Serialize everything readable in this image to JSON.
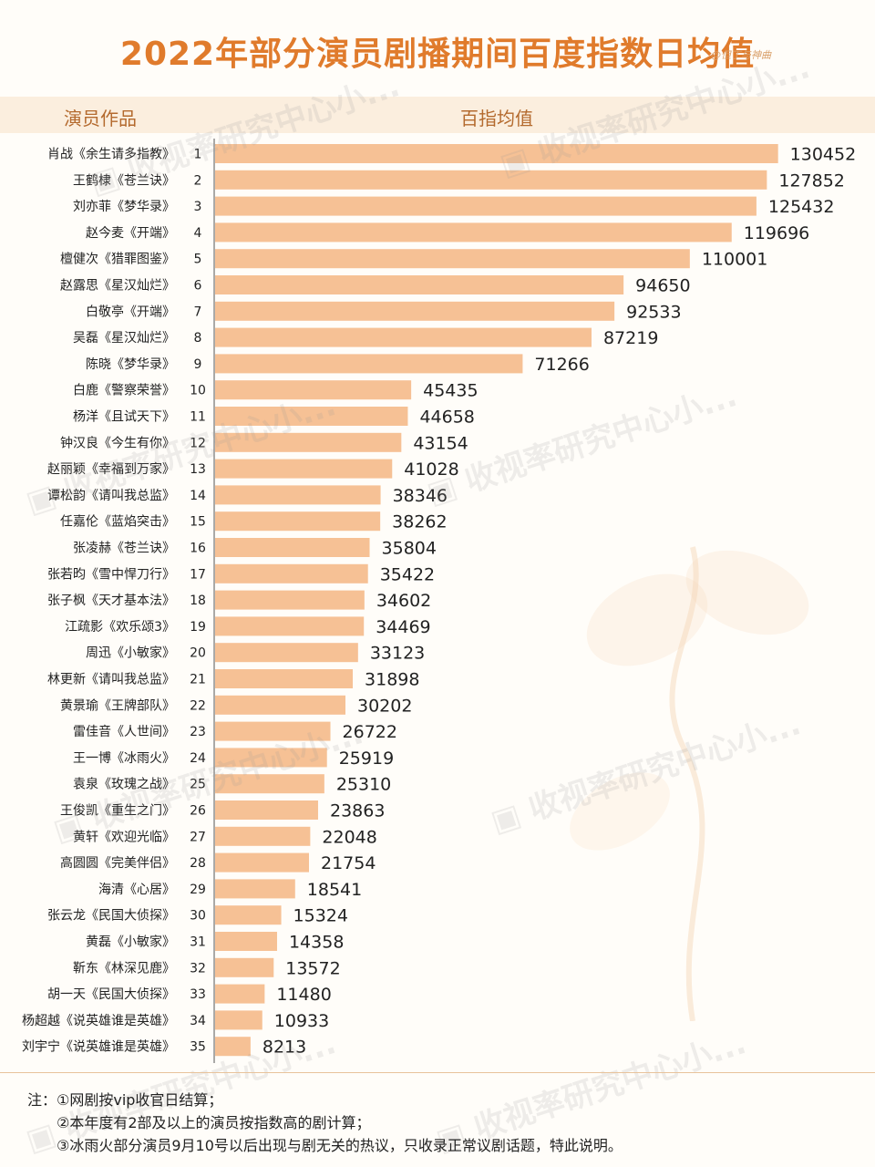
{
  "header": {
    "title": "2022年部分演员剧播期间百度指数日均值",
    "signature": "@但丁与神曲",
    "col_left": "演员作品",
    "col_right": "百指均值"
  },
  "watermark_text": "收视率研究中心小...",
  "colors": {
    "title": "#e07b2c",
    "bar": "#f6c195",
    "header_band": "#fbeede",
    "header_text": "#b46a2e"
  },
  "chart_data": {
    "type": "bar",
    "orientation": "horizontal",
    "title": "2022年部分演员剧播期间百度指数日均值",
    "xlabel": "百指均值",
    "ylabel": "演员作品",
    "xlim": [
      0,
      132000
    ],
    "grid": false,
    "legend": "none",
    "data_labels": true,
    "ranks": [
      "1",
      "2",
      "3",
      "4",
      "5",
      "6",
      "7",
      "8",
      "9",
      "10",
      "11",
      "12",
      "13",
      "14",
      "15",
      "16",
      "17",
      "18",
      "19",
      "20",
      "21",
      "22",
      "23",
      "24",
      "25",
      "26",
      "27",
      "28",
      "29",
      "30",
      "31",
      "32",
      "33",
      "34",
      "35"
    ],
    "categories": [
      "肖战《余生请多指教》",
      "王鹤棣《苍兰诀》",
      "刘亦菲《梦华录》",
      "赵今麦《开端》",
      "檀健次《猎罪图鉴》",
      "赵露思《星汉灿烂》",
      "白敬亭《开端》",
      "吴磊《星汉灿烂》",
      "陈晓《梦华录》",
      "白鹿《警察荣誉》",
      "杨洋《且试天下》",
      "钟汉良《今生有你》",
      "赵丽颖《幸福到万家》",
      "谭松韵《请叫我总监》",
      "任嘉伦《蓝焰突击》",
      "张凌赫《苍兰诀》",
      "张若昀《雪中悍刀行》",
      "张子枫《天才基本法》",
      "江疏影《欢乐颂3》",
      "周迅《小敏家》",
      "林更新《请叫我总监》",
      "黄景瑜《王牌部队》",
      "雷佳音《人世间》",
      "王一博《冰雨火》",
      "袁泉《玫瑰之战》",
      "王俊凯《重生之门》",
      "黄轩《欢迎光临》",
      "高圆圆《完美伴侣》",
      "海清《心居》",
      "张云龙《民国大侦探》",
      "黄磊《小敏家》",
      "靳东《林深见鹿》",
      "胡一天《民国大侦探》",
      "杨超越《说英雄谁是英雄》",
      "刘宇宁《说英雄谁是英雄》"
    ],
    "values": [
      130452,
      127852,
      125432,
      119696,
      110001,
      94650,
      92533,
      87219,
      71266,
      45435,
      44658,
      43154,
      41028,
      38346,
      38262,
      35804,
      35422,
      34602,
      34469,
      33123,
      31898,
      30202,
      26722,
      25919,
      25310,
      23863,
      22048,
      21754,
      18541,
      15324,
      14358,
      13572,
      11480,
      10933,
      8213
    ]
  },
  "notes": {
    "prefix": "注：",
    "line1": "①网剧按vip收官日结算；",
    "line2": "②本年度有2部及以上的演员按指数高的剧计算；",
    "line3": "③冰雨火部分演员9月10号以后出现与剧无关的热议，只收录正常议剧话题，特此说明。"
  }
}
